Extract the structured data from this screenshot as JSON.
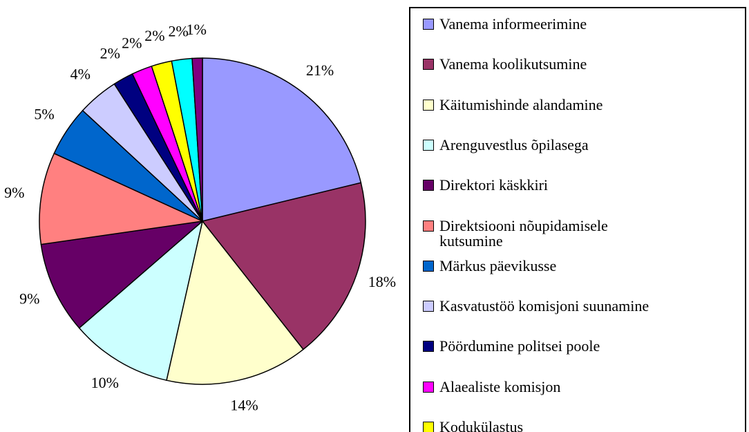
{
  "chart_data": {
    "type": "pie",
    "categories": [
      "Vanema informeerimine",
      "Vanema koolikutsumine",
      "Käitumishinde alandamine",
      "Arenguvestlus õpilasega",
      "Direktori käskkiri",
      "Direktsiooni nõupidamisele kutsumine",
      "Märkus päevikusse",
      "Kasvatustöö komisjoni suunamine",
      "Pöördumine politsei poole",
      "Alaealiste komisjon",
      "Kodukülastus",
      null,
      null
    ],
    "values": [
      21,
      18,
      14,
      10,
      9,
      9,
      5,
      4,
      2,
      2,
      2,
      2,
      1
    ],
    "value_labels": [
      "21%",
      "18%",
      "14%",
      "10%",
      "9%",
      "9%",
      "5%",
      "4%",
      "2%",
      "2%",
      "2%",
      "2%",
      "1%"
    ],
    "colors": [
      "#9999ff",
      "#993366",
      "#ffffcc",
      "#ccffff",
      "#660066",
      "#ff8080",
      "#0066cc",
      "#ccccff",
      "#000080",
      "#ff00ff",
      "#ffff00",
      "#00ffff",
      "#800080"
    ],
    "legend": "right"
  }
}
